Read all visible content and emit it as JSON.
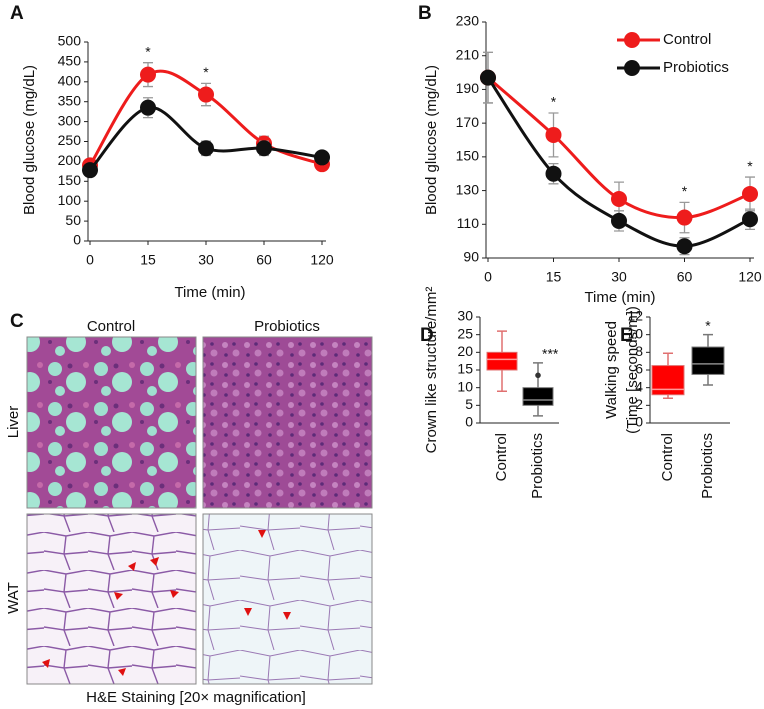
{
  "chart_data": [
    {
      "type": "line",
      "panel_label": "A",
      "xlabel": "Time (min)",
      "ylabel": "Blood glucose (mg/dL)",
      "categories": [
        "0",
        "15",
        "30",
        "60",
        "120"
      ],
      "ylim": [
        0,
        500
      ],
      "yticks": [
        0,
        50,
        100,
        150,
        200,
        250,
        300,
        350,
        400,
        450,
        500
      ],
      "series": [
        {
          "name": "Control",
          "color": "#ee1c1c",
          "values": [
            190,
            418,
            368,
            245,
            193
          ],
          "errors": [
            12,
            30,
            28,
            18,
            10
          ]
        },
        {
          "name": "Probiotics",
          "color": "#111111",
          "values": [
            178,
            335,
            233,
            233,
            210
          ],
          "errors": [
            12,
            25,
            18,
            18,
            12
          ]
        }
      ],
      "annotations": [
        {
          "x": "15",
          "text": "*"
        },
        {
          "x": "30",
          "text": "*"
        }
      ]
    },
    {
      "type": "line",
      "panel_label": "B",
      "xlabel": "Time (min)",
      "ylabel": "Blood glucose (mg/dL)",
      "categories": [
        "0",
        "15",
        "30",
        "60",
        "120"
      ],
      "ylim": [
        90,
        230
      ],
      "yticks": [
        90,
        110,
        130,
        150,
        170,
        190,
        210,
        230
      ],
      "legend": "top-right",
      "series": [
        {
          "name": "Control",
          "color": "#ee1c1c",
          "values": [
            197,
            163,
            125,
            114,
            128
          ],
          "errors": [
            15,
            13,
            10,
            9,
            10
          ]
        },
        {
          "name": "Probiotics",
          "color": "#111111",
          "values": [
            197,
            140,
            112,
            97,
            113
          ],
          "errors": [
            15,
            6,
            6,
            5,
            6
          ]
        }
      ],
      "annotations": [
        {
          "x": "15",
          "text": "*"
        },
        {
          "x": "60",
          "text": "*"
        },
        {
          "x": "120",
          "text": "*"
        }
      ]
    },
    {
      "type": "box",
      "panel_label": "D",
      "ylabel": "Crown like structure/mm²",
      "categories": [
        "Control",
        "Probiotics"
      ],
      "ylim": [
        0,
        30
      ],
      "yticks": [
        0,
        5,
        10,
        15,
        20,
        25,
        30
      ],
      "boxes": [
        {
          "color": "#ff0000",
          "whisker_color": "#e07070",
          "median_color": "#ff9999",
          "min": 9,
          "q1": 15,
          "median": 18,
          "q3": 20,
          "max": 26,
          "outliers": []
        },
        {
          "color": "#000000",
          "whisker_color": "#777777",
          "median_color": "#888888",
          "min": 2,
          "q1": 5,
          "median": 6.5,
          "q3": 10,
          "max": 17,
          "outliers": [
            13.5
          ]
        }
      ],
      "annotations": [
        {
          "x": "Probiotics",
          "text": "***"
        }
      ]
    },
    {
      "type": "box",
      "panel_label": "E",
      "ylabel": [
        "Walking speed",
        "(Time [seconds/m])"
      ],
      "categories": [
        "Control",
        "Probiotics"
      ],
      "ylim": [
        0,
        12
      ],
      "yticks": [
        0,
        2,
        4,
        6,
        8,
        10,
        12
      ],
      "boxes": [
        {
          "color": "#ff0000",
          "whisker_color": "#e07070",
          "median_color": "#ff9999",
          "min": 2.8,
          "q1": 3.2,
          "median": 3.8,
          "q3": 6.5,
          "max": 7.9,
          "outliers": []
        },
        {
          "color": "#000000",
          "whisker_color": "#777777",
          "median_color": "#888888",
          "min": 4.3,
          "q1": 5.5,
          "median": 6.7,
          "q3": 8.6,
          "max": 10,
          "outliers": []
        }
      ],
      "annotations": [
        {
          "x": "Probiotics",
          "text": "*"
        }
      ]
    }
  ],
  "figure_c": {
    "panel_label": "C",
    "columns": [
      "Control",
      "Probiotics"
    ],
    "rows": [
      "Liver",
      "WAT"
    ],
    "caption": "H&E Staining [20× magnification]"
  }
}
